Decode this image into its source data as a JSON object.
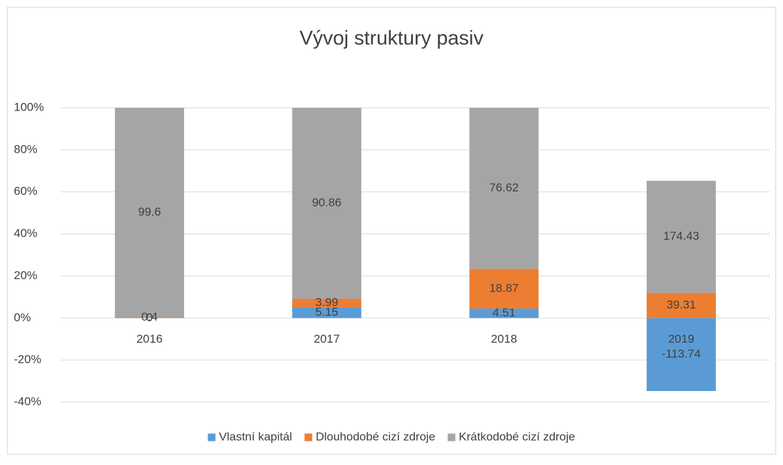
{
  "chart_data": {
    "type": "bar",
    "stacking": "percent",
    "title": "Vývoj struktury pasiv",
    "categories": [
      "2016",
      "2017",
      "2018",
      "2019"
    ],
    "series": [
      {
        "name": "Vlastní kapitál",
        "color": "#5b9bd5",
        "values": [
          0,
          5.15,
          4.51,
          -113.74
        ]
      },
      {
        "name": "Dlouhodobé cizí zdroje",
        "color": "#ed7d31",
        "values": [
          0.4,
          3.99,
          18.87,
          39.31
        ]
      },
      {
        "name": "Krátkodobé cizí zdroje",
        "color": "#a5a5a5",
        "values": [
          99.6,
          90.86,
          76.62,
          174.43
        ]
      }
    ],
    "ylim": [
      -40,
      100
    ],
    "yticks": [
      {
        "value": -40,
        "label": "-40%"
      },
      {
        "value": -20,
        "label": "-20%"
      },
      {
        "value": 0,
        "label": "0%"
      },
      {
        "value": 20,
        "label": "20%"
      },
      {
        "value": 40,
        "label": "40%"
      },
      {
        "value": 60,
        "label": "60%"
      },
      {
        "value": 80,
        "label": "80%"
      },
      {
        "value": 100,
        "label": "100%"
      }
    ],
    "grid": true,
    "legend": "bottom"
  }
}
